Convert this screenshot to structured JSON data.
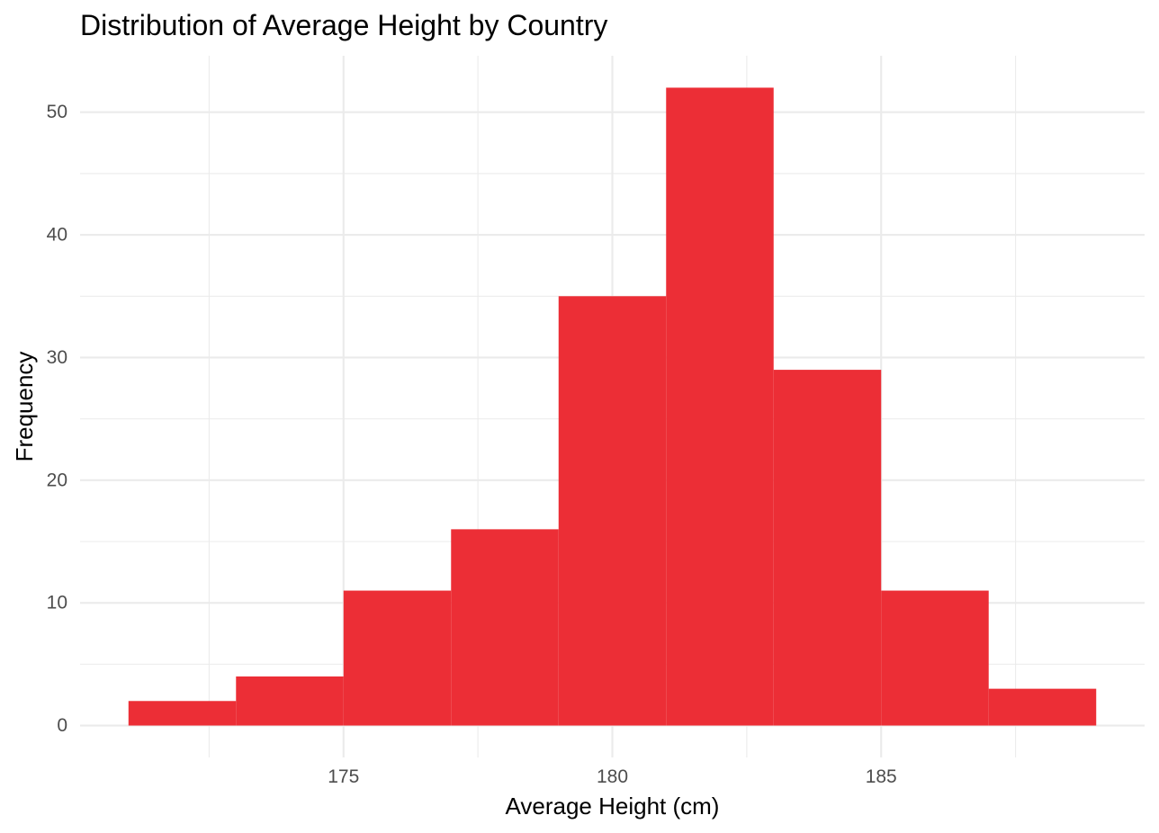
{
  "chart_data": {
    "type": "bar",
    "subtype": "histogram",
    "title": "Distribution of Average Height by Country",
    "xlabel": "Average Height (cm)",
    "ylabel": "Frequency",
    "bar_color": "#ec2e36",
    "grid": true,
    "xlim": [
      170.1,
      189.9
    ],
    "ylim": [
      -2.6,
      54.6
    ],
    "x_ticks": [
      175,
      180,
      185
    ],
    "x_tick_labels": [
      "175",
      "180",
      "185"
    ],
    "y_ticks": [
      0,
      10,
      20,
      30,
      40,
      50
    ],
    "y_tick_labels": [
      "0",
      "10",
      "20",
      "30",
      "40",
      "50"
    ],
    "bins": [
      {
        "x0": 171,
        "x1": 173,
        "count": 2
      },
      {
        "x0": 173,
        "x1": 175,
        "count": 4
      },
      {
        "x0": 175,
        "x1": 177,
        "count": 11
      },
      {
        "x0": 177,
        "x1": 179,
        "count": 16
      },
      {
        "x0": 179,
        "x1": 181,
        "count": 35
      },
      {
        "x0": 181,
        "x1": 183,
        "count": 52
      },
      {
        "x0": 183,
        "x1": 185,
        "count": 29
      },
      {
        "x0": 185,
        "x1": 187,
        "count": 11
      },
      {
        "x0": 187,
        "x1": 189,
        "count": 3
      }
    ]
  }
}
